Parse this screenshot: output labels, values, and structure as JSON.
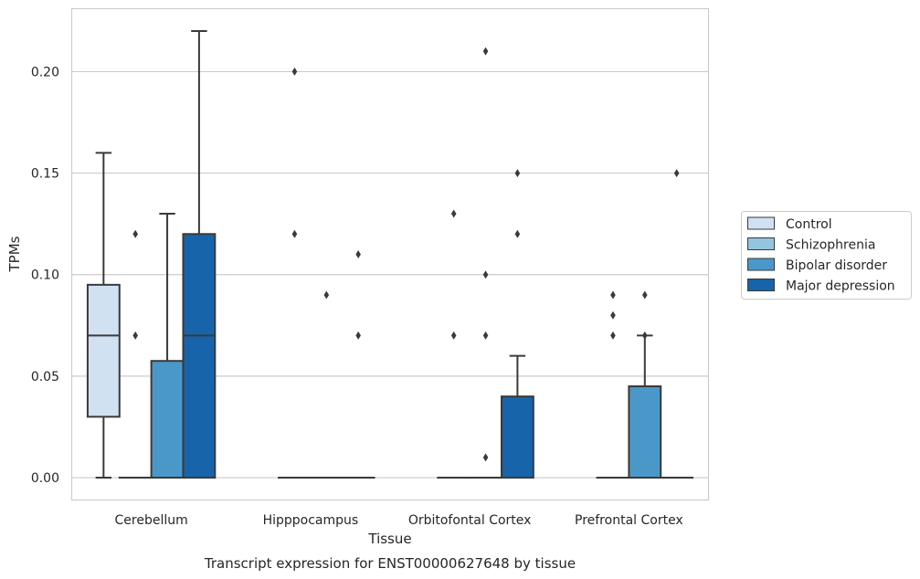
{
  "chart_data": {
    "type": "box",
    "xlabel": "Tissue",
    "ylabel": "TPMs",
    "caption": "Transcript expression for ENST00000627648 by tissue",
    "ylim": [
      -0.011,
      0.231
    ],
    "yticks": [
      0.0,
      0.05,
      0.1,
      0.15,
      0.2
    ],
    "ytick_labels": [
      "0.00",
      "0.05",
      "0.10",
      "0.15",
      "0.20"
    ],
    "grid": "horizontal",
    "legend_position": "right",
    "categories": [
      "Cerebellum",
      "Hipppocampus",
      "Orbitofontal Cortex",
      "Prefrontal Cortex"
    ],
    "series": [
      {
        "name": "Control",
        "color": "#d0e1f2",
        "boxes": [
          {
            "whisker_low": 0.0,
            "q1": 0.03,
            "median": 0.07,
            "q3": 0.095,
            "whisker_high": 0.16,
            "outliers": []
          },
          null,
          null,
          null
        ]
      },
      {
        "name": "Schizophrenia",
        "color": "#94c4df",
        "boxes": [
          {
            "whisker_low": 0.0,
            "q1": 0.0,
            "median": 0.0,
            "q3": 0.0,
            "whisker_high": 0.0,
            "outliers": [
              0.07,
              0.12
            ]
          },
          {
            "whisker_low": 0.0,
            "q1": 0.0,
            "median": 0.0,
            "q3": 0.0,
            "whisker_high": 0.0,
            "outliers": [
              0.2,
              0.12
            ]
          },
          {
            "whisker_low": 0.0,
            "q1": 0.0,
            "median": 0.0,
            "q3": 0.0,
            "whisker_high": 0.0,
            "outliers": [
              0.13,
              0.07
            ]
          },
          {
            "whisker_low": 0.0,
            "q1": 0.0,
            "median": 0.0,
            "q3": 0.0,
            "whisker_high": 0.0,
            "outliers": [
              0.09,
              0.08,
              0.07
            ]
          }
        ]
      },
      {
        "name": "Bipolar disorder",
        "color": "#4a98c9",
        "boxes": [
          {
            "whisker_low": 0.0,
            "q1": 0.0,
            "median": 0.0,
            "q3": 0.0575,
            "whisker_high": 0.13,
            "outliers": []
          },
          {
            "whisker_low": 0.0,
            "q1": 0.0,
            "median": 0.0,
            "q3": 0.0,
            "whisker_high": 0.0,
            "outliers": [
              0.09
            ]
          },
          {
            "whisker_low": 0.0,
            "q1": 0.0,
            "median": 0.0,
            "q3": 0.0,
            "whisker_high": 0.0,
            "outliers": [
              0.21,
              0.07,
              0.1,
              0.01
            ]
          },
          {
            "whisker_low": 0.0,
            "q1": 0.0,
            "median": 0.0,
            "q3": 0.045,
            "whisker_high": 0.07,
            "outliers": [
              0.09,
              0.07
            ]
          }
        ]
      },
      {
        "name": "Major depression",
        "color": "#1764ab",
        "boxes": [
          {
            "whisker_low": 0.0,
            "q1": 0.0,
            "median": 0.07,
            "q3": 0.12,
            "whisker_high": 0.22,
            "outliers": []
          },
          {
            "whisker_low": 0.0,
            "q1": 0.0,
            "median": 0.0,
            "q3": 0.0,
            "whisker_high": 0.0,
            "outliers": [
              0.11,
              0.07
            ]
          },
          {
            "whisker_low": 0.0,
            "q1": 0.0,
            "median": 0.0,
            "q3": 0.04,
            "whisker_high": 0.06,
            "outliers": [
              0.15,
              0.12
            ]
          },
          {
            "whisker_low": 0.0,
            "q1": 0.0,
            "median": 0.0,
            "q3": 0.0,
            "whisker_high": 0.0,
            "outliers": [
              0.15
            ]
          }
        ]
      }
    ],
    "colors": {
      "grid": "#cccccc",
      "frame": "#cccccc",
      "box_edge": "#3a3a3a",
      "text": "#262626"
    }
  }
}
